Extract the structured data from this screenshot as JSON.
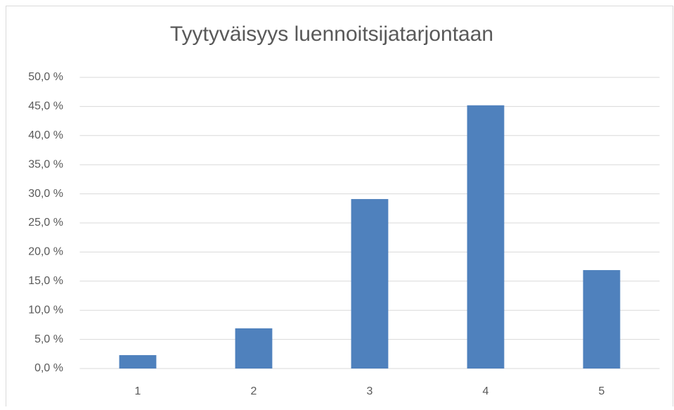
{
  "chart_data": {
    "type": "bar",
    "title": "Tyytyväisyys luennoitsijatarjontaan",
    "categories": [
      "1",
      "2",
      "3",
      "4",
      "5"
    ],
    "values": [
      2.3,
      6.9,
      29.1,
      45.2,
      16.9
    ],
    "color": "#4f81bd",
    "ylim": [
      0,
      50
    ],
    "yticks": [
      {
        "value": 0,
        "label": "0,0 %"
      },
      {
        "value": 5,
        "label": "5,0 %"
      },
      {
        "value": 10,
        "label": "10,0 %"
      },
      {
        "value": 15,
        "label": "15,0 %"
      },
      {
        "value": 20,
        "label": "20,0 %"
      },
      {
        "value": 25,
        "label": "25,0 %"
      },
      {
        "value": 30,
        "label": "30,0 %"
      },
      {
        "value": 35,
        "label": "35,0 %"
      },
      {
        "value": 40,
        "label": "40,0 %"
      },
      {
        "value": 45,
        "label": "45,0 %"
      },
      {
        "value": 50,
        "label": "50,0 %"
      }
    ],
    "grid": true
  }
}
